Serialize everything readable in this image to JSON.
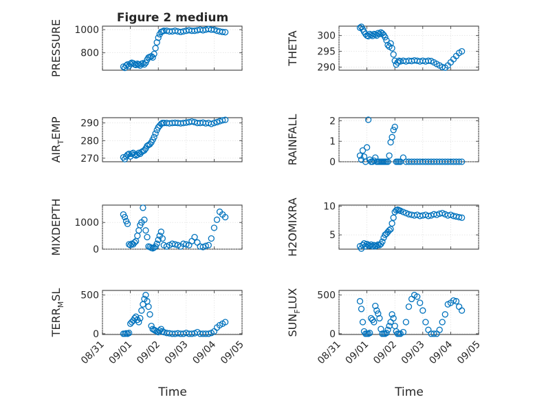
{
  "figure": {
    "title": "Figure 2 medium",
    "xlabel": "Time",
    "marker_color": "#0072BD",
    "grid": true,
    "x_ticks": [
      "08/31",
      "09/01",
      "09/02",
      "09/03",
      "09/04",
      "09/05"
    ]
  },
  "chart_data": [
    {
      "type": "scatter",
      "marker": "circle",
      "ylabel": "PRESSURE",
      "ylabel_sub": "",
      "ylabel_tail": "",
      "ylim": [
        650,
        1030
      ],
      "yticks": [
        800,
        1000
      ],
      "xlim": [
        0,
        5
      ],
      "x": [
        0.75,
        0.8,
        0.85,
        0.9,
        0.95,
        1.0,
        1.05,
        1.1,
        1.15,
        1.2,
        1.25,
        1.3,
        1.35,
        1.4,
        1.45,
        1.5,
        1.55,
        1.6,
        1.65,
        1.7,
        1.75,
        1.8,
        1.85,
        1.9,
        1.95,
        2.0,
        2.05,
        2.1,
        2.15,
        2.2,
        2.3,
        2.4,
        2.5,
        2.6,
        2.7,
        2.8,
        2.9,
        3.0,
        3.1,
        3.2,
        3.3,
        3.4,
        3.5,
        3.6,
        3.7,
        3.8,
        3.9,
        4.0,
        4.1,
        4.2,
        4.3,
        4.4
      ],
      "y": [
        680,
        670,
        690,
        700,
        685,
        705,
        715,
        710,
        700,
        695,
        705,
        700,
        690,
        705,
        710,
        700,
        715,
        740,
        760,
        765,
        770,
        760,
        790,
        840,
        890,
        930,
        960,
        980,
        985,
        990,
        990,
        985,
        985,
        990,
        985,
        980,
        985,
        990,
        995,
        990,
        990,
        995,
        1000,
        995,
        1000,
        1005,
        1000,
        1000,
        990,
        985,
        980,
        978
      ]
    },
    {
      "type": "scatter",
      "marker": "circle",
      "ylabel": "THETA",
      "ylabel_sub": "",
      "ylabel_tail": "",
      "ylim": [
        289,
        303
      ],
      "yticks": [
        290,
        295,
        300
      ],
      "xlim": [
        0,
        5
      ],
      "x": [
        0.75,
        0.8,
        0.85,
        0.9,
        0.95,
        1.0,
        1.05,
        1.1,
        1.15,
        1.2,
        1.25,
        1.3,
        1.35,
        1.4,
        1.45,
        1.5,
        1.55,
        1.6,
        1.65,
        1.7,
        1.75,
        1.8,
        1.85,
        1.9,
        1.95,
        2.0,
        2.05,
        2.1,
        2.15,
        2.2,
        2.3,
        2.4,
        2.5,
        2.6,
        2.7,
        2.8,
        2.9,
        3.0,
        3.1,
        3.2,
        3.3,
        3.4,
        3.5,
        3.6,
        3.7,
        3.8,
        3.9,
        4.0,
        4.1,
        4.2,
        4.3,
        4.4
      ],
      "y": [
        302.5,
        302.8,
        302.0,
        301.2,
        300.5,
        300.0,
        299.8,
        300.5,
        300.2,
        299.9,
        300.5,
        300.3,
        300.0,
        300.8,
        300.5,
        301.0,
        300.7,
        300.2,
        299.5,
        298.5,
        297.0,
        296.5,
        297.5,
        296.0,
        294.0,
        292.0,
        290.8,
        291.5,
        292.0,
        291.8,
        292.0,
        291.8,
        292.0,
        291.9,
        292.1,
        292.0,
        291.8,
        292.0,
        291.8,
        292.0,
        291.9,
        291.5,
        291.0,
        290.5,
        290.0,
        289.8,
        290.5,
        291.5,
        292.5,
        293.5,
        294.5,
        295.0
      ]
    },
    {
      "type": "scatter",
      "marker": "circle",
      "ylabel": "AIR",
      "ylabel_sub": "T",
      "ylabel_tail": "EMP",
      "ylim": [
        268,
        293
      ],
      "yticks": [
        270,
        280,
        290
      ],
      "xlim": [
        0,
        5
      ],
      "x": [
        0.75,
        0.8,
        0.85,
        0.9,
        0.95,
        1.0,
        1.05,
        1.1,
        1.15,
        1.2,
        1.25,
        1.3,
        1.35,
        1.4,
        1.45,
        1.5,
        1.55,
        1.6,
        1.65,
        1.7,
        1.75,
        1.8,
        1.85,
        1.9,
        1.95,
        2.0,
        2.05,
        2.1,
        2.15,
        2.2,
        2.3,
        2.4,
        2.5,
        2.6,
        2.7,
        2.8,
        2.9,
        3.0,
        3.1,
        3.2,
        3.3,
        3.4,
        3.5,
        3.6,
        3.7,
        3.8,
        3.9,
        4.0,
        4.1,
        4.2,
        4.3,
        4.4
      ],
      "y": [
        270.5,
        269.5,
        271.0,
        272.0,
        272.5,
        271.0,
        272.5,
        273.0,
        272.0,
        271.5,
        272.0,
        273.0,
        272.5,
        273.5,
        274.0,
        274.5,
        275.5,
        277.0,
        277.5,
        278.0,
        279.0,
        280.5,
        282.0,
        284.0,
        286.0,
        287.5,
        288.5,
        289.5,
        290.0,
        290.0,
        290.0,
        289.8,
        290.0,
        290.1,
        290.0,
        289.8,
        290.0,
        290.2,
        290.5,
        290.8,
        290.5,
        290.0,
        290.0,
        290.2,
        289.8,
        290.0,
        289.5,
        290.0,
        290.5,
        291.0,
        291.5,
        291.8
      ]
    },
    {
      "type": "scatter",
      "marker": "circle",
      "ylabel": "RAINFALL",
      "ylabel_sub": "",
      "ylabel_tail": "",
      "ylim": [
        0,
        2.15
      ],
      "yticks": [
        0,
        1,
        2
      ],
      "xlim": [
        0,
        5
      ],
      "x": [
        0.75,
        0.8,
        0.85,
        0.9,
        0.95,
        1.0,
        1.05,
        1.1,
        1.15,
        1.2,
        1.25,
        1.3,
        1.35,
        1.4,
        1.45,
        1.5,
        1.55,
        1.6,
        1.65,
        1.7,
        1.75,
        1.8,
        1.85,
        1.9,
        1.95,
        2.0,
        2.05,
        2.1,
        2.15,
        2.2,
        2.3,
        2.4,
        2.5,
        2.6,
        2.7,
        2.8,
        2.9,
        3.0,
        3.1,
        3.2,
        3.3,
        3.4,
        3.5,
        3.6,
        3.7,
        3.8,
        3.9,
        4.0,
        4.1,
        4.2,
        4.3,
        4.4
      ],
      "y": [
        0.3,
        0.1,
        0.55,
        0.25,
        0.0,
        0.7,
        2.05,
        0.1,
        0.0,
        0.0,
        0.05,
        0.2,
        0.0,
        0.0,
        0.0,
        0.0,
        0.0,
        0.0,
        0.0,
        0.0,
        0.0,
        0.3,
        0.95,
        1.2,
        1.55,
        1.7,
        0.0,
        0.0,
        0.0,
        0.0,
        0.2,
        0.0,
        0.0,
        0.0,
        0.0,
        0.0,
        0.0,
        0.0,
        0.0,
        0.0,
        0.0,
        0.0,
        0.0,
        0.0,
        0.0,
        0.0,
        0.0,
        0.0,
        0.0,
        0.0,
        0.0,
        0.0
      ]
    },
    {
      "type": "scatter",
      "marker": "circle",
      "ylabel": "MIXDEPTH",
      "ylabel_sub": "",
      "ylabel_tail": "",
      "ylim": [
        0,
        1650
      ],
      "yticks": [
        0,
        1000
      ],
      "xlim": [
        0,
        5
      ],
      "x": [
        0.75,
        0.8,
        0.85,
        0.9,
        0.95,
        1.0,
        1.05,
        1.1,
        1.15,
        1.2,
        1.25,
        1.3,
        1.35,
        1.4,
        1.45,
        1.5,
        1.55,
        1.6,
        1.65,
        1.7,
        1.75,
        1.8,
        1.85,
        1.9,
        1.95,
        2.0,
        2.05,
        2.1,
        2.15,
        2.2,
        2.3,
        2.4,
        2.5,
        2.6,
        2.7,
        2.8,
        2.9,
        3.0,
        3.1,
        3.2,
        3.3,
        3.4,
        3.5,
        3.6,
        3.7,
        3.8,
        3.9,
        4.0,
        4.1,
        4.2,
        4.3,
        4.4
      ],
      "y": [
        1300,
        1200,
        1050,
        950,
        180,
        150,
        200,
        180,
        250,
        300,
        500,
        700,
        900,
        1000,
        1550,
        1100,
        700,
        450,
        100,
        80,
        50,
        30,
        60,
        100,
        200,
        350,
        500,
        650,
        400,
        150,
        100,
        150,
        200,
        180,
        150,
        100,
        200,
        180,
        150,
        300,
        450,
        250,
        100,
        80,
        120,
        150,
        400,
        800,
        1100,
        1400,
        1300,
        1200
      ]
    },
    {
      "type": "scatter",
      "marker": "circle",
      "ylabel": "H2OMIXRA",
      "ylabel_sub": "",
      "ylabel_tail": "",
      "ylim": [
        2.5,
        10.2
      ],
      "yticks": [
        5,
        10
      ],
      "xlim": [
        0,
        5
      ],
      "x": [
        0.75,
        0.8,
        0.85,
        0.9,
        0.95,
        1.0,
        1.05,
        1.1,
        1.15,
        1.2,
        1.25,
        1.3,
        1.35,
        1.4,
        1.45,
        1.5,
        1.55,
        1.6,
        1.65,
        1.7,
        1.75,
        1.8,
        1.85,
        1.9,
        1.95,
        2.0,
        2.05,
        2.1,
        2.15,
        2.2,
        2.3,
        2.4,
        2.5,
        2.6,
        2.7,
        2.8,
        2.9,
        3.0,
        3.1,
        3.2,
        3.3,
        3.4,
        3.5,
        3.6,
        3.7,
        3.8,
        3.9,
        4.0,
        4.1,
        4.2,
        4.3,
        4.4
      ],
      "y": [
        3.0,
        2.6,
        3.2,
        3.5,
        3.0,
        3.4,
        3.2,
        3.1,
        3.3,
        3.0,
        3.2,
        3.0,
        3.1,
        3.3,
        3.2,
        3.4,
        3.8,
        4.5,
        5.0,
        5.2,
        5.5,
        5.8,
        6.0,
        7.0,
        8.0,
        9.0,
        9.3,
        9.4,
        9.3,
        9.2,
        9.0,
        8.8,
        8.6,
        8.5,
        8.4,
        8.5,
        8.3,
        8.4,
        8.5,
        8.3,
        8.4,
        8.6,
        8.5,
        8.7,
        8.8,
        8.6,
        8.4,
        8.5,
        8.3,
        8.2,
        8.1,
        8.0
      ]
    },
    {
      "type": "scatter",
      "marker": "circle",
      "ylabel": "TERR",
      "ylabel_sub": "M",
      "ylabel_tail": "SL",
      "ylim": [
        -10,
        560
      ],
      "yticks": [
        0,
        500
      ],
      "xlim": [
        0,
        5
      ],
      "x": [
        0.75,
        0.8,
        0.85,
        0.9,
        0.95,
        1.0,
        1.05,
        1.1,
        1.15,
        1.2,
        1.25,
        1.3,
        1.35,
        1.4,
        1.45,
        1.5,
        1.55,
        1.6,
        1.65,
        1.7,
        1.75,
        1.8,
        1.85,
        1.9,
        1.95,
        2.0,
        2.05,
        2.1,
        2.15,
        2.2,
        2.3,
        2.4,
        2.5,
        2.6,
        2.7,
        2.8,
        2.9,
        3.0,
        3.1,
        3.2,
        3.3,
        3.4,
        3.5,
        3.6,
        3.7,
        3.8,
        3.9,
        4.0,
        4.1,
        4.2,
        4.3,
        4.4
      ],
      "y": [
        0,
        0,
        5,
        0,
        10,
        130,
        150,
        170,
        200,
        220,
        180,
        150,
        200,
        300,
        380,
        450,
        500,
        420,
        350,
        250,
        100,
        60,
        50,
        40,
        30,
        20,
        40,
        60,
        30,
        20,
        10,
        5,
        0,
        0,
        5,
        0,
        0,
        10,
        0,
        0,
        5,
        20,
        0,
        0,
        0,
        0,
        10,
        30,
        80,
        110,
        130,
        150
      ]
    },
    {
      "type": "scatter",
      "marker": "circle",
      "ylabel": "SUN",
      "ylabel_sub": "F",
      "ylabel_tail": "LUX",
      "ylim": [
        -10,
        560
      ],
      "yticks": [
        0,
        500
      ],
      "xlim": [
        0,
        5
      ],
      "x": [
        0.75,
        0.8,
        0.85,
        0.9,
        0.95,
        1.0,
        1.05,
        1.1,
        1.15,
        1.2,
        1.25,
        1.3,
        1.35,
        1.4,
        1.45,
        1.5,
        1.55,
        1.6,
        1.65,
        1.7,
        1.75,
        1.8,
        1.85,
        1.9,
        1.95,
        2.0,
        2.05,
        2.1,
        2.15,
        2.2,
        2.3,
        2.4,
        2.5,
        2.6,
        2.7,
        2.8,
        2.9,
        3.0,
        3.1,
        3.2,
        3.3,
        3.4,
        3.5,
        3.6,
        3.7,
        3.8,
        3.9,
        4.0,
        4.1,
        4.2,
        4.3,
        4.4
      ],
      "y": [
        420,
        320,
        150,
        30,
        0,
        0,
        0,
        10,
        200,
        180,
        150,
        360,
        300,
        260,
        200,
        60,
        0,
        0,
        0,
        10,
        50,
        100,
        150,
        250,
        200,
        100,
        30,
        0,
        0,
        0,
        20,
        150,
        350,
        450,
        500,
        480,
        400,
        300,
        150,
        50,
        0,
        0,
        0,
        50,
        150,
        250,
        380,
        400,
        430,
        420,
        350,
        300
      ]
    }
  ]
}
